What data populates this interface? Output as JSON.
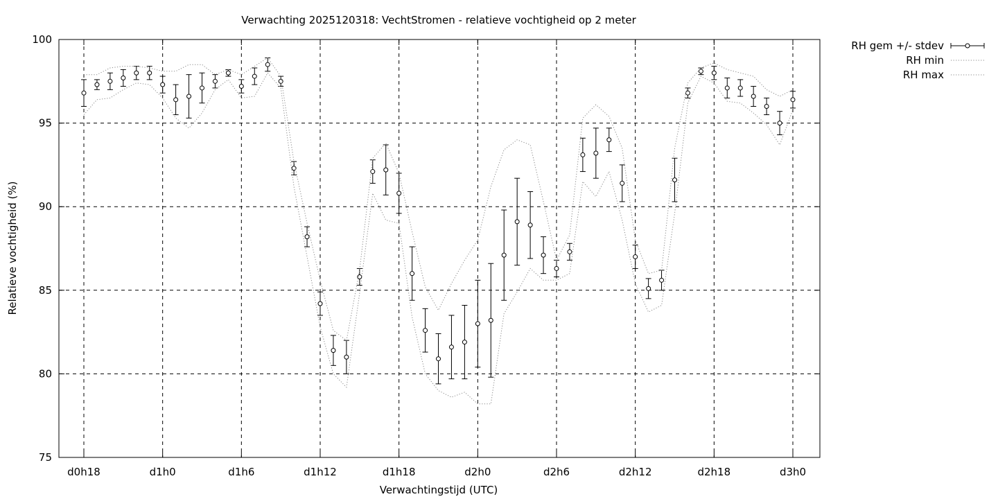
{
  "chart_data": {
    "type": "scatter",
    "title": "Verwachting 2025120318: VechtStromen - relatieve vochtigheid op 2 meter",
    "xlabel": "Verwachtingstijd (UTC)",
    "ylabel": "Relatieve vochtigheid (%)",
    "xlim": [
      18,
      72
    ],
    "ylim": [
      75,
      100
    ],
    "grid": true,
    "legend_position": "outside-top-right",
    "x_ticks": [
      {
        "x": 18,
        "label": "d0h18"
      },
      {
        "x": 24,
        "label": "d1h0"
      },
      {
        "x": 30,
        "label": "d1h6"
      },
      {
        "x": 36,
        "label": "d1h12"
      },
      {
        "x": 42,
        "label": "d1h18"
      },
      {
        "x": 48,
        "label": "d2h0"
      },
      {
        "x": 54,
        "label": "d2h6"
      },
      {
        "x": 60,
        "label": "d2h12"
      },
      {
        "x": 66,
        "label": "d2h18"
      },
      {
        "x": 72,
        "label": "d3h0"
      }
    ],
    "y_ticks": [
      75,
      80,
      85,
      90,
      95,
      100
    ],
    "series": [
      {
        "name": "RH gem +/- stdev",
        "style": "errorbars",
        "x": [
          18,
          19,
          20,
          21,
          22,
          23,
          24,
          25,
          26,
          27,
          28,
          29,
          30,
          31,
          32,
          33,
          34,
          35,
          36,
          37,
          38,
          39,
          40,
          41,
          42,
          43,
          44,
          45,
          46,
          47,
          48,
          49,
          50,
          51,
          52,
          53,
          54,
          55,
          56,
          57,
          58,
          59,
          60,
          61,
          62,
          63,
          64,
          65,
          66,
          67,
          68,
          69,
          70,
          71,
          72
        ],
        "y": [
          96.8,
          97.3,
          97.5,
          97.7,
          98.0,
          98.0,
          97.3,
          96.4,
          96.6,
          97.1,
          97.5,
          98.0,
          97.2,
          97.8,
          98.5,
          97.5,
          92.3,
          88.2,
          84.2,
          81.4,
          81.0,
          85.8,
          92.1,
          92.2,
          90.8,
          86.0,
          82.6,
          80.9,
          81.6,
          81.9,
          83.0,
          83.2,
          87.1,
          89.1,
          88.9,
          87.1,
          86.3,
          87.3,
          93.1,
          93.2,
          94.0,
          91.4,
          87.0,
          85.1,
          85.6,
          91.6,
          96.8,
          98.1,
          98.0,
          97.1,
          97.1,
          96.6,
          96.0,
          95.0,
          96.4
        ],
        "stdev": [
          0.8,
          0.3,
          0.5,
          0.5,
          0.4,
          0.4,
          0.5,
          0.9,
          1.3,
          0.9,
          0.4,
          0.2,
          0.4,
          0.5,
          0.4,
          0.3,
          0.4,
          0.6,
          0.7,
          0.9,
          1.0,
          0.5,
          0.7,
          1.5,
          1.2,
          1.6,
          1.3,
          1.5,
          1.9,
          2.2,
          2.6,
          3.4,
          2.7,
          2.6,
          2.0,
          1.1,
          0.5,
          0.5,
          1.0,
          1.5,
          0.7,
          1.1,
          0.7,
          0.6,
          0.6,
          1.3,
          0.3,
          0.2,
          0.4,
          0.6,
          0.5,
          0.6,
          0.5,
          0.7,
          0.5
        ]
      },
      {
        "name": "RH min",
        "style": "dotted-line",
        "x": [
          18,
          19,
          20,
          21,
          22,
          23,
          24,
          25,
          26,
          27,
          28,
          29,
          30,
          31,
          32,
          33,
          34,
          35,
          36,
          37,
          38,
          39,
          40,
          41,
          42,
          43,
          44,
          45,
          46,
          47,
          48,
          49,
          50,
          51,
          52,
          53,
          54,
          55,
          56,
          57,
          58,
          59,
          60,
          61,
          62,
          63,
          64,
          65,
          66,
          67,
          68,
          69,
          70,
          71,
          72
        ],
        "y": [
          95.5,
          96.4,
          96.5,
          97.0,
          97.4,
          97.3,
          96.5,
          95.3,
          94.7,
          95.6,
          97.0,
          97.6,
          96.5,
          96.6,
          98.0,
          97.1,
          91.2,
          87.0,
          82.8,
          80.0,
          79.2,
          84.8,
          90.8,
          89.2,
          89.0,
          83.4,
          80.0,
          79.0,
          78.6,
          78.9,
          78.2,
          78.2,
          83.6,
          84.9,
          86.3,
          85.6,
          85.6,
          86.0,
          91.5,
          90.6,
          92.1,
          89.2,
          85.4,
          83.7,
          84.1,
          89.6,
          96.2,
          97.8,
          97.4,
          96.3,
          96.2,
          95.6,
          94.9,
          93.7,
          95.8
        ]
      },
      {
        "name": "RH max",
        "style": "dotted-line",
        "x": [
          18,
          19,
          20,
          21,
          22,
          23,
          24,
          25,
          26,
          27,
          28,
          29,
          30,
          31,
          32,
          33,
          34,
          35,
          36,
          37,
          38,
          39,
          40,
          41,
          42,
          43,
          44,
          45,
          46,
          47,
          48,
          49,
          50,
          51,
          52,
          53,
          54,
          55,
          56,
          57,
          58,
          59,
          60,
          61,
          62,
          63,
          64,
          65,
          66,
          67,
          68,
          69,
          70,
          71,
          72
        ],
        "y": [
          97.9,
          97.9,
          98.3,
          98.4,
          98.4,
          98.3,
          98.1,
          98.1,
          98.5,
          98.5,
          97.9,
          98.2,
          97.9,
          98.4,
          98.9,
          97.8,
          92.7,
          89.0,
          85.6,
          82.6,
          82.0,
          86.2,
          92.9,
          93.8,
          92.0,
          88.5,
          85.2,
          83.8,
          85.4,
          86.8,
          88.0,
          91.2,
          93.4,
          94.0,
          93.7,
          90.3,
          86.8,
          88.3,
          95.3,
          96.1,
          95.4,
          93.5,
          88.0,
          86.0,
          86.2,
          93.5,
          97.4,
          98.3,
          98.6,
          98.2,
          98.0,
          97.8,
          97.0,
          96.6,
          97.0
        ]
      }
    ]
  }
}
